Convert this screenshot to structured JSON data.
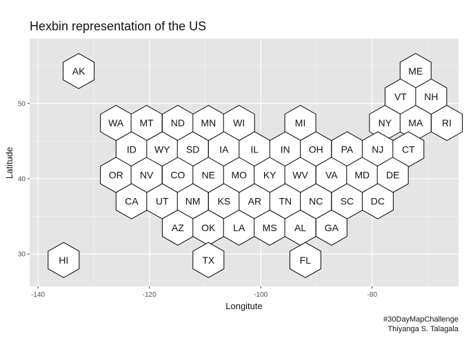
{
  "chart_data": {
    "type": "hexbin map",
    "title": "Hexbin representation of the US",
    "xlabel": "Longitute",
    "ylabel": "Latitude",
    "x_ticks": [
      -140,
      -120,
      -100,
      -80
    ],
    "y_ticks": [
      30,
      40,
      50
    ],
    "xlim": [
      -141.5,
      -64.5
    ],
    "ylim": [
      25.7,
      58.6
    ],
    "grid": true,
    "background": "#e5e5e5",
    "hex_fill": "#ffffff",
    "hex_stroke": "#000000",
    "states": [
      {
        "abbr": "AK",
        "lon": -132.7,
        "lat": 54.3
      },
      {
        "abbr": "ME",
        "lon": -72.2,
        "lat": 54.3
      },
      {
        "abbr": "VT",
        "lon": -74.9,
        "lat": 50.9
      },
      {
        "abbr": "NH",
        "lon": -69.4,
        "lat": 50.9
      },
      {
        "abbr": "WA",
        "lon": -126.0,
        "lat": 47.4
      },
      {
        "abbr": "MT",
        "lon": -120.5,
        "lat": 47.4
      },
      {
        "abbr": "ND",
        "lon": -114.9,
        "lat": 47.4
      },
      {
        "abbr": "MN",
        "lon": -109.4,
        "lat": 47.4
      },
      {
        "abbr": "WI",
        "lon": -103.9,
        "lat": 47.4
      },
      {
        "abbr": "MI",
        "lon": -92.9,
        "lat": 47.4
      },
      {
        "abbr": "NY",
        "lon": -77.7,
        "lat": 47.4
      },
      {
        "abbr": "MA",
        "lon": -72.2,
        "lat": 47.4
      },
      {
        "abbr": "RI",
        "lon": -66.6,
        "lat": 47.4
      },
      {
        "abbr": "ID",
        "lon": -123.2,
        "lat": 43.9
      },
      {
        "abbr": "WY",
        "lon": -117.7,
        "lat": 43.9
      },
      {
        "abbr": "SD",
        "lon": -112.2,
        "lat": 43.9
      },
      {
        "abbr": "IA",
        "lon": -106.6,
        "lat": 43.9
      },
      {
        "abbr": "IL",
        "lon": -101.1,
        "lat": 43.9
      },
      {
        "abbr": "IN",
        "lon": -95.6,
        "lat": 43.9
      },
      {
        "abbr": "OH",
        "lon": -90.1,
        "lat": 43.9
      },
      {
        "abbr": "PA",
        "lon": -84.5,
        "lat": 43.9
      },
      {
        "abbr": "NJ",
        "lon": -79.0,
        "lat": 43.9
      },
      {
        "abbr": "CT",
        "lon": -73.5,
        "lat": 43.9
      },
      {
        "abbr": "OR",
        "lon": -126.0,
        "lat": 40.5
      },
      {
        "abbr": "NV",
        "lon": -120.5,
        "lat": 40.5
      },
      {
        "abbr": "CO",
        "lon": -114.9,
        "lat": 40.5
      },
      {
        "abbr": "NE",
        "lon": -109.4,
        "lat": 40.5
      },
      {
        "abbr": "MO",
        "lon": -103.9,
        "lat": 40.5
      },
      {
        "abbr": "KY",
        "lon": -98.4,
        "lat": 40.5
      },
      {
        "abbr": "WV",
        "lon": -92.9,
        "lat": 40.5
      },
      {
        "abbr": "VA",
        "lon": -87.3,
        "lat": 40.5
      },
      {
        "abbr": "MD",
        "lon": -81.8,
        "lat": 40.5
      },
      {
        "abbr": "DE",
        "lon": -76.3,
        "lat": 40.5
      },
      {
        "abbr": "CA",
        "lon": -123.2,
        "lat": 37.0
      },
      {
        "abbr": "UT",
        "lon": -117.7,
        "lat": 37.0
      },
      {
        "abbr": "NM",
        "lon": -112.2,
        "lat": 37.0
      },
      {
        "abbr": "KS",
        "lon": -106.6,
        "lat": 37.0
      },
      {
        "abbr": "AR",
        "lon": -101.1,
        "lat": 37.0
      },
      {
        "abbr": "TN",
        "lon": -95.6,
        "lat": 37.0
      },
      {
        "abbr": "NC",
        "lon": -90.1,
        "lat": 37.0
      },
      {
        "abbr": "SC",
        "lon": -84.5,
        "lat": 37.0
      },
      {
        "abbr": "DC",
        "lon": -79.0,
        "lat": 37.0
      },
      {
        "abbr": "AZ",
        "lon": -114.9,
        "lat": 33.5
      },
      {
        "abbr": "OK",
        "lon": -109.4,
        "lat": 33.5
      },
      {
        "abbr": "LA",
        "lon": -103.9,
        "lat": 33.5
      },
      {
        "abbr": "MS",
        "lon": -98.4,
        "lat": 33.5
      },
      {
        "abbr": "AL",
        "lon": -92.9,
        "lat": 33.5
      },
      {
        "abbr": "GA",
        "lon": -87.3,
        "lat": 33.5
      },
      {
        "abbr": "HI",
        "lon": -135.4,
        "lat": 29.2
      },
      {
        "abbr": "TX",
        "lon": -109.4,
        "lat": 29.2
      },
      {
        "abbr": "FL",
        "lon": -92.0,
        "lat": 29.2
      }
    ]
  },
  "caption": {
    "line1": "#30DayMapChallenge",
    "line2": "Thiyanga S. Talagala"
  }
}
